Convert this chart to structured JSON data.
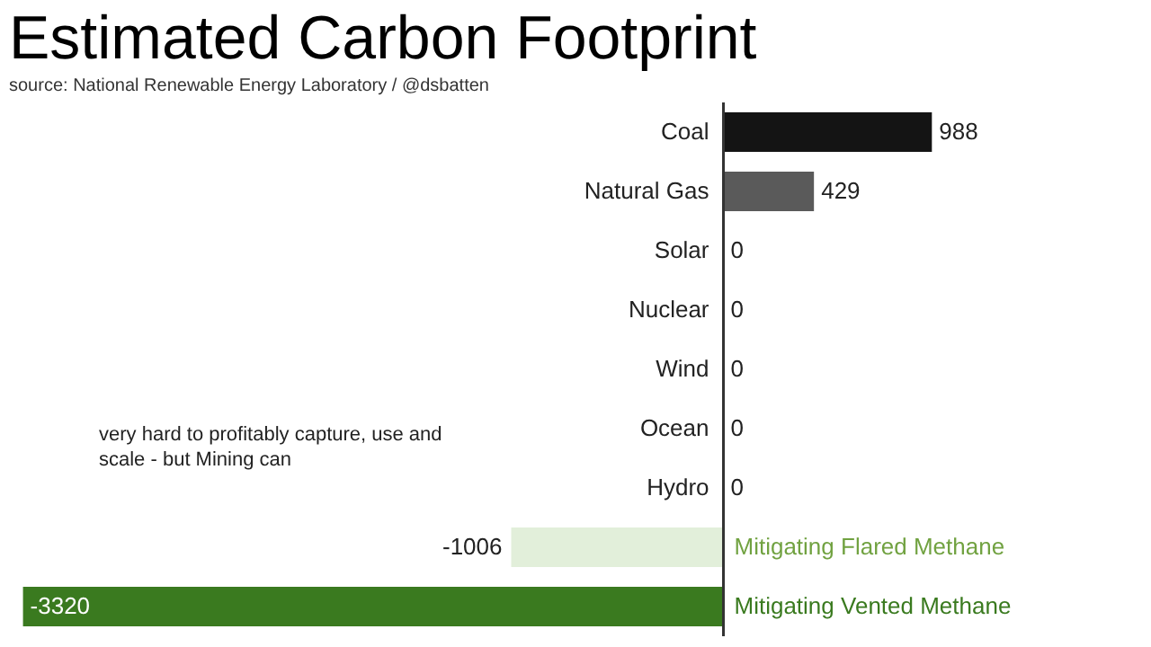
{
  "chart_data": {
    "type": "bar",
    "orientation": "horizontal",
    "title": "Estimated Carbon Footprint",
    "subtitle": "source: National Renewable Energy Laboratory / @dsbatten",
    "categories": [
      "Coal",
      "Natural Gas",
      "Solar",
      "Nuclear",
      "Wind",
      "Ocean",
      "Hydro",
      "Mitigating Flared Methane",
      "Mitigating Vented Methane"
    ],
    "values": [
      988,
      429,
      0,
      0,
      0,
      0,
      0,
      -1006,
      -3320
    ],
    "colors": [
      "#141414",
      "#5a5a5a",
      "#dddddd",
      "#dddddd",
      "#dddddd",
      "#dddddd",
      "#dddddd",
      "#e2efda",
      "#3a7a1f"
    ],
    "data_labels": true,
    "annotations": [
      "very hard to profitably capture, use and scale - but Mining can"
    ]
  }
}
